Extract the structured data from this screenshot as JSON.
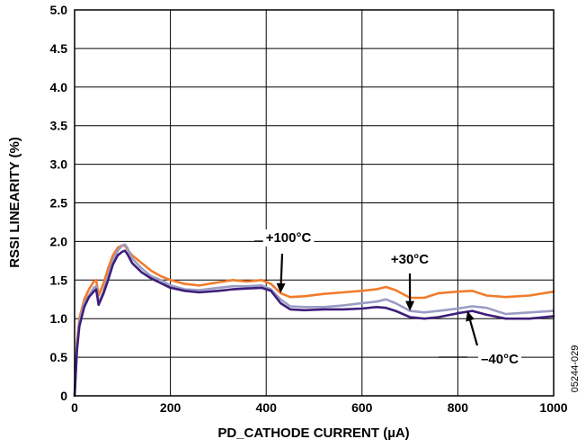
{
  "chart_data": {
    "type": "line",
    "title": "",
    "xlabel": "PD_CATHODE CURRENT (µA)",
    "ylabel": "RSSI LINEARITY (%)",
    "xlim": [
      0,
      1000
    ],
    "ylim": [
      0,
      5.0
    ],
    "x_ticks": [
      0,
      200,
      400,
      600,
      800,
      1000
    ],
    "x_tick_labels": [
      "0",
      "200",
      "400",
      "600",
      "800",
      "1000"
    ],
    "y_ticks": [
      0,
      0.5,
      1.0,
      1.5,
      2.0,
      2.5,
      3.0,
      3.5,
      4.0,
      4.5,
      5.0
    ],
    "y_tick_labels": [
      "0",
      "0.5",
      "1.0",
      "1.5",
      "2.0",
      "2.5",
      "3.0",
      "3.5",
      "4.0",
      "4.5",
      "5.0"
    ],
    "grid": true,
    "series": [
      {
        "name": "+100°C",
        "color": "#F07C2B",
        "x": [
          0,
          5,
          10,
          20,
          30,
          40,
          45,
          50,
          60,
          70,
          80,
          90,
          100,
          105,
          110,
          120,
          140,
          160,
          180,
          200,
          230,
          260,
          300,
          330,
          360,
          390,
          410,
          430,
          450,
          480,
          520,
          560,
          600,
          630,
          650,
          670,
          700,
          730,
          760,
          800,
          830,
          860,
          900,
          950,
          1000
        ],
        "y": [
          0,
          0.7,
          1.0,
          1.25,
          1.38,
          1.48,
          1.5,
          1.3,
          1.45,
          1.65,
          1.82,
          1.92,
          1.95,
          1.94,
          1.9,
          1.82,
          1.72,
          1.62,
          1.55,
          1.5,
          1.45,
          1.43,
          1.47,
          1.5,
          1.48,
          1.5,
          1.45,
          1.33,
          1.28,
          1.29,
          1.32,
          1.34,
          1.36,
          1.38,
          1.41,
          1.37,
          1.27,
          1.27,
          1.33,
          1.35,
          1.36,
          1.3,
          1.28,
          1.3,
          1.35
        ]
      },
      {
        "name": "+30°C",
        "color": "#9A9CC4",
        "x": [
          0,
          5,
          10,
          20,
          30,
          40,
          45,
          50,
          60,
          70,
          80,
          90,
          100,
          105,
          110,
          120,
          140,
          160,
          180,
          200,
          230,
          260,
          300,
          330,
          360,
          390,
          410,
          430,
          450,
          480,
          520,
          560,
          600,
          630,
          650,
          670,
          700,
          730,
          760,
          800,
          830,
          860,
          900,
          950,
          1000
        ],
        "y": [
          0,
          0.65,
          0.95,
          1.2,
          1.3,
          1.4,
          1.42,
          1.2,
          1.35,
          1.55,
          1.75,
          1.88,
          1.95,
          1.96,
          1.92,
          1.78,
          1.65,
          1.55,
          1.5,
          1.43,
          1.38,
          1.37,
          1.4,
          1.42,
          1.42,
          1.43,
          1.38,
          1.25,
          1.16,
          1.15,
          1.15,
          1.17,
          1.2,
          1.22,
          1.25,
          1.2,
          1.1,
          1.08,
          1.1,
          1.13,
          1.16,
          1.14,
          1.06,
          1.08,
          1.1
        ]
      },
      {
        "name": "–40°C",
        "color": "#3D1E7A",
        "x": [
          0,
          5,
          10,
          20,
          30,
          40,
          45,
          50,
          60,
          70,
          80,
          90,
          100,
          105,
          110,
          120,
          140,
          160,
          180,
          200,
          230,
          260,
          300,
          330,
          360,
          390,
          410,
          430,
          450,
          480,
          520,
          560,
          600,
          630,
          650,
          670,
          700,
          730,
          760,
          800,
          830,
          860,
          900,
          950,
          1000
        ],
        "y": [
          0,
          0.6,
          0.9,
          1.15,
          1.28,
          1.35,
          1.38,
          1.18,
          1.32,
          1.5,
          1.7,
          1.82,
          1.87,
          1.88,
          1.84,
          1.72,
          1.6,
          1.52,
          1.46,
          1.4,
          1.36,
          1.34,
          1.36,
          1.38,
          1.39,
          1.4,
          1.36,
          1.2,
          1.12,
          1.11,
          1.12,
          1.12,
          1.13,
          1.15,
          1.14,
          1.1,
          1.02,
          1.0,
          1.02,
          1.07,
          1.1,
          1.05,
          1.0,
          1.0,
          1.03
        ]
      }
    ],
    "annotations": [
      {
        "text": "+100°C",
        "series": "+100°C",
        "x": 430,
        "y": 1.33
      },
      {
        "text": "+30°C",
        "series": "+30°C",
        "x": 700,
        "y": 1.1
      },
      {
        "text": "–40°C",
        "series": "–40°C",
        "x": 820,
        "y": 1.1
      }
    ],
    "figure_id": "05244-029"
  }
}
